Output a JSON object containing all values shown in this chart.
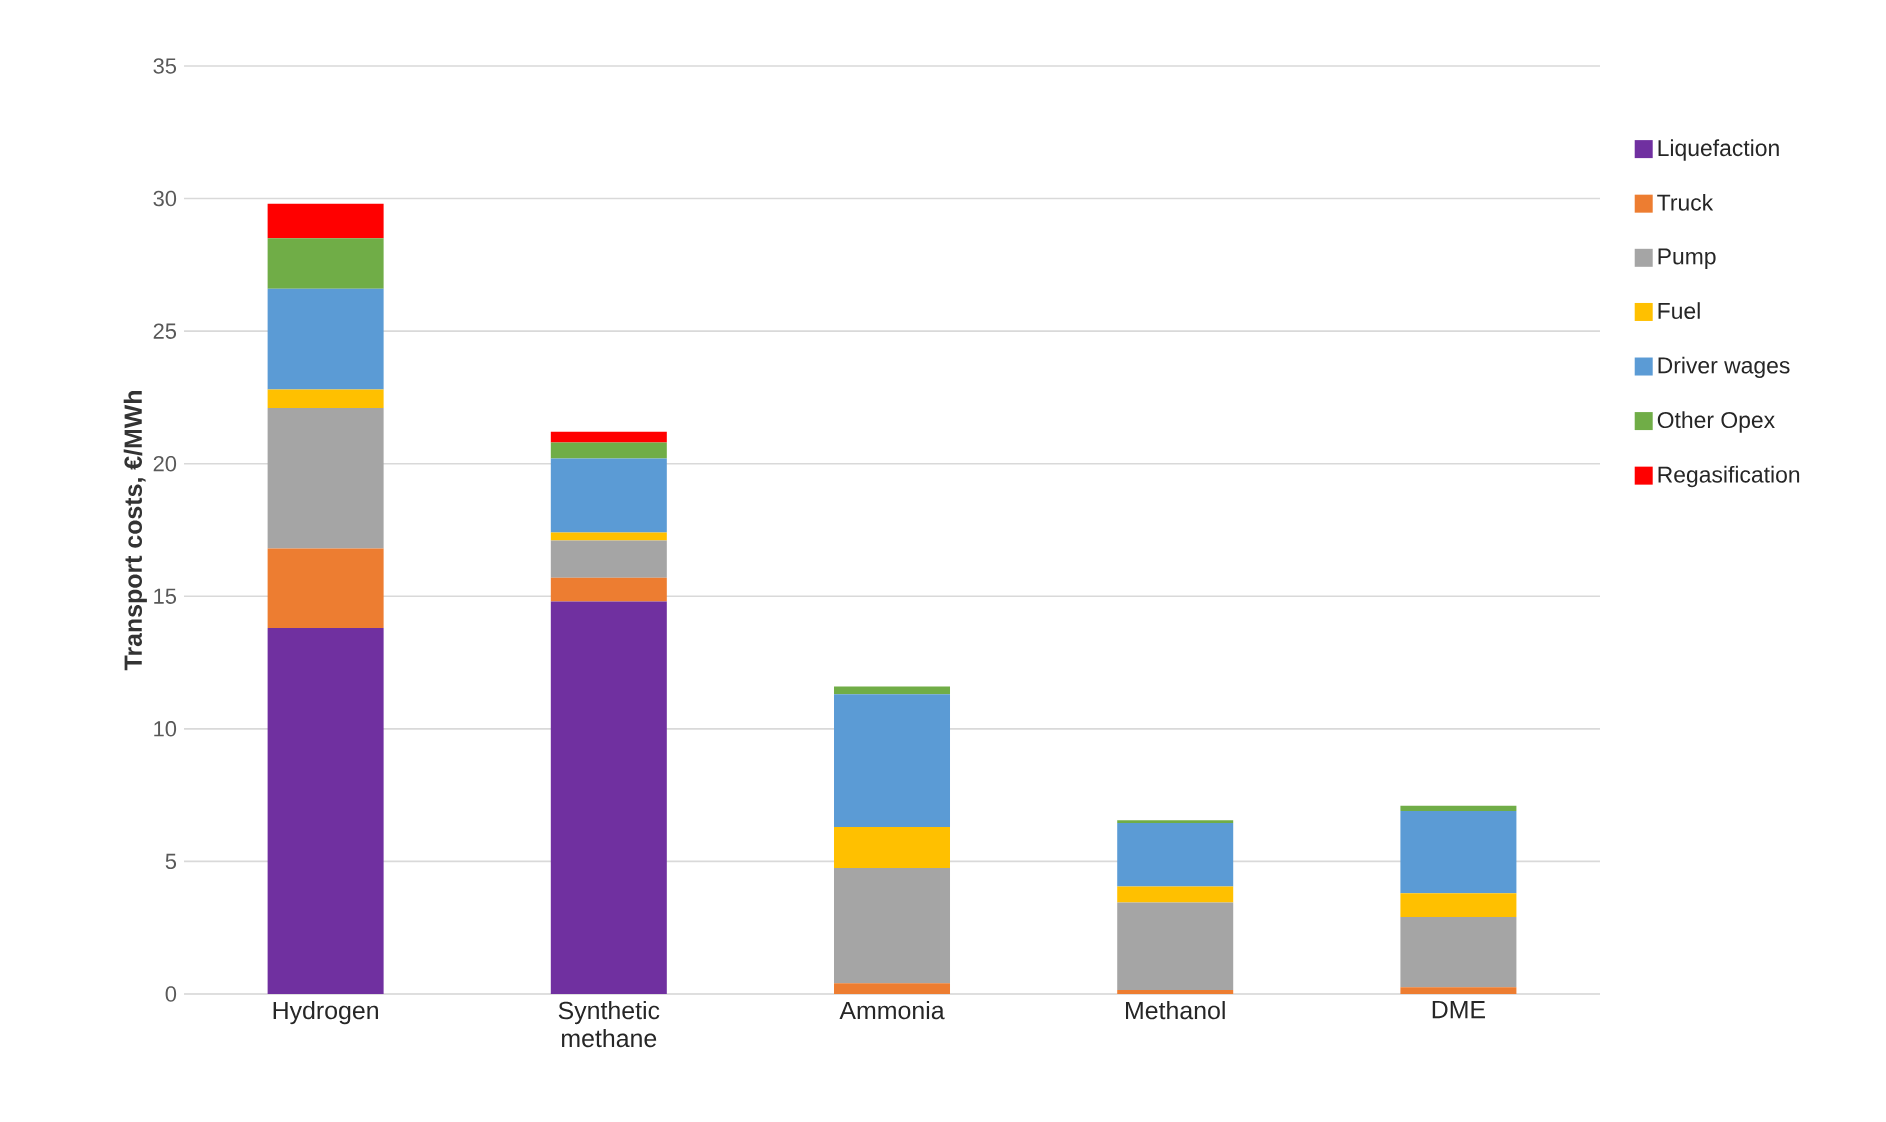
{
  "chart_data": {
    "type": "bar",
    "stacked": true,
    "ylabel": "Transport costs, €/MWh",
    "categories": [
      "Hydrogen",
      "Synthetic methane",
      "Ammonia",
      "Methanol",
      "DME"
    ],
    "series": [
      {
        "name": "Liquefaction",
        "color": "#7030a0",
        "values": [
          13.8,
          14.8,
          0,
          0,
          0
        ]
      },
      {
        "name": "Truck",
        "color": "#ed7d31",
        "values": [
          3.0,
          0.9,
          0.4,
          0.15,
          0.25
        ]
      },
      {
        "name": "Pump",
        "color": "#a5a5a5",
        "values": [
          5.3,
          1.4,
          4.35,
          3.3,
          2.65
        ]
      },
      {
        "name": "Fuel",
        "color": "#ffc000",
        "values": [
          0.7,
          0.3,
          1.55,
          0.6,
          0.9
        ]
      },
      {
        "name": "Driver wages",
        "color": "#5b9bd5",
        "values": [
          3.8,
          2.8,
          5.0,
          2.4,
          3.1
        ]
      },
      {
        "name": "Other Opex",
        "color": "#70ad47",
        "values": [
          1.9,
          0.6,
          0.3,
          0.1,
          0.2
        ]
      },
      {
        "name": "Regasification",
        "color": "#ff0000",
        "values": [
          1.3,
          0.4,
          0,
          0,
          0
        ]
      }
    ],
    "ylim": [
      0,
      35
    ],
    "yticks": [
      0,
      5,
      10,
      15,
      20,
      25,
      30,
      35
    ],
    "grid": "y",
    "legend": "right"
  }
}
